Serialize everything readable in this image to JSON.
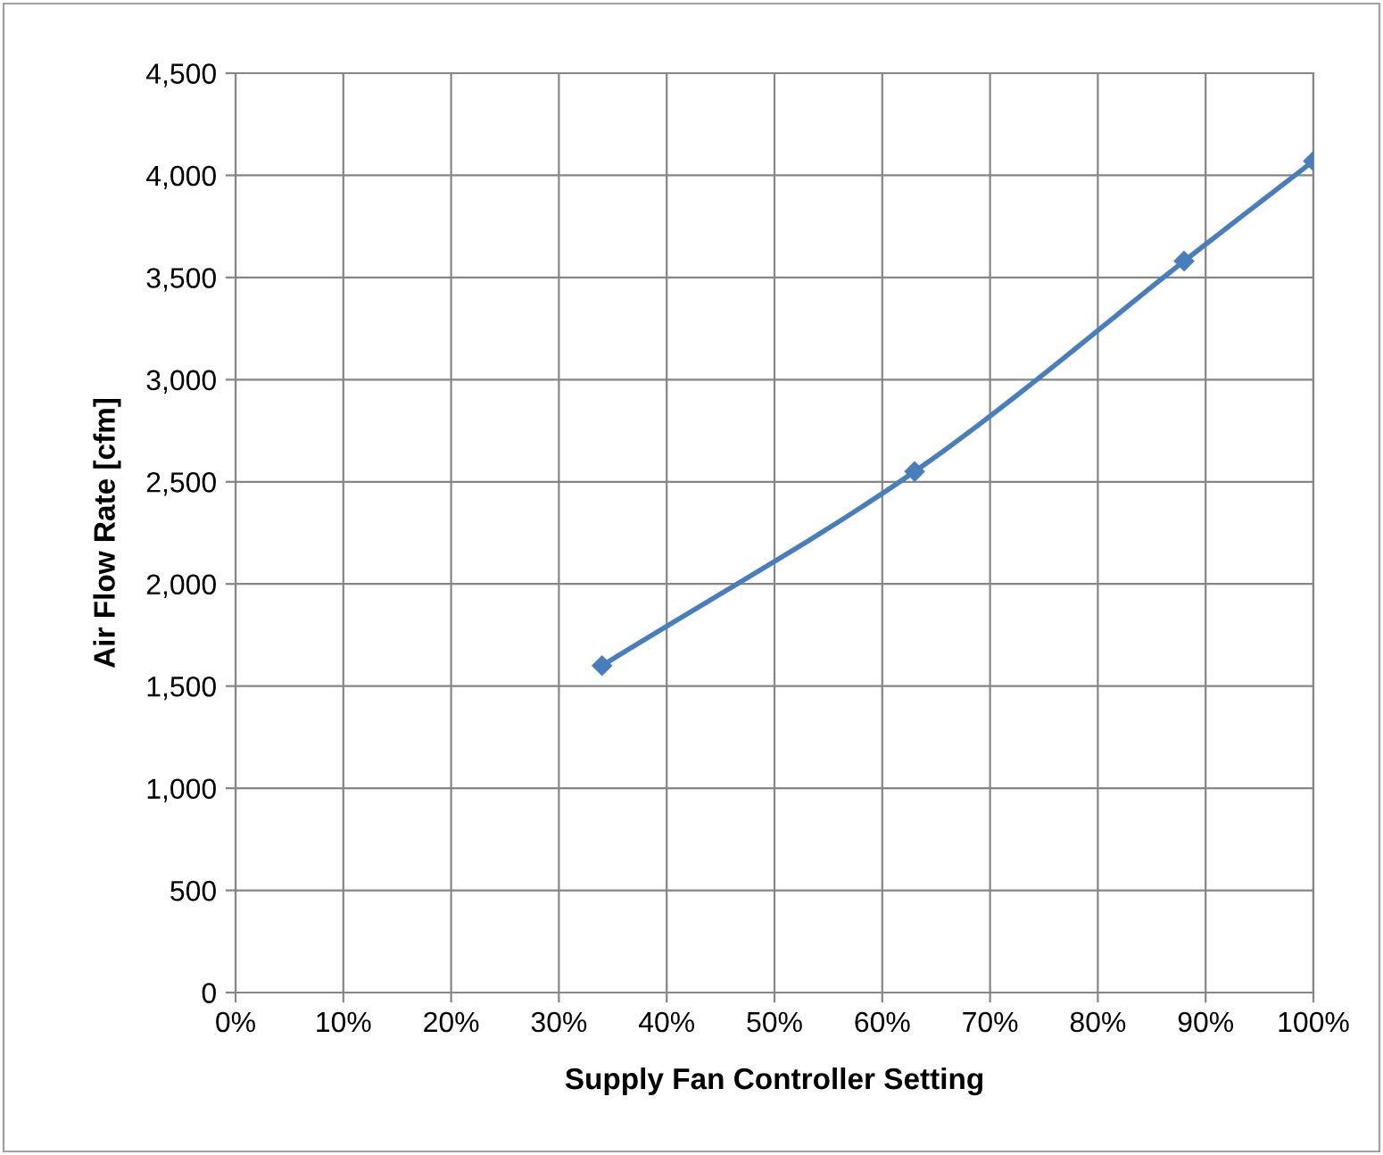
{
  "chart_data": {
    "type": "line",
    "xlabel": "Supply Fan Controller Setting",
    "ylabel": "Air Flow Rate [cfm]",
    "x": [
      34,
      63,
      88,
      100
    ],
    "series": [
      {
        "color": "#4a7ebb",
        "values": [
          1600,
          2550,
          3580,
          4070
        ]
      }
    ],
    "xlim": [
      0,
      100
    ],
    "xticks": [
      {
        "value": 0,
        "label": "0%"
      },
      {
        "value": 10,
        "label": "10%"
      },
      {
        "value": 20,
        "label": "20%"
      },
      {
        "value": 30,
        "label": "30%"
      },
      {
        "value": 40,
        "label": "40%"
      },
      {
        "value": 50,
        "label": "50%"
      },
      {
        "value": 60,
        "label": "60%"
      },
      {
        "value": 70,
        "label": "70%"
      },
      {
        "value": 80,
        "label": "80%"
      },
      {
        "value": 90,
        "label": "90%"
      },
      {
        "value": 100,
        "label": "100%"
      }
    ],
    "ylim": [
      0,
      4500
    ],
    "yticks": [
      {
        "value": 0,
        "label": "0"
      },
      {
        "value": 500,
        "label": "500"
      },
      {
        "value": 1000,
        "label": "1,000"
      },
      {
        "value": 1500,
        "label": "1,500"
      },
      {
        "value": 2000,
        "label": "2,000"
      },
      {
        "value": 2500,
        "label": "2,500"
      },
      {
        "value": 3000,
        "label": "3,000"
      },
      {
        "value": 3500,
        "label": "3,500"
      },
      {
        "value": 4000,
        "label": "4,000"
      },
      {
        "value": 4500,
        "label": "4,500"
      }
    ],
    "grid": true,
    "marker": "diamond",
    "line_style": "solid"
  }
}
